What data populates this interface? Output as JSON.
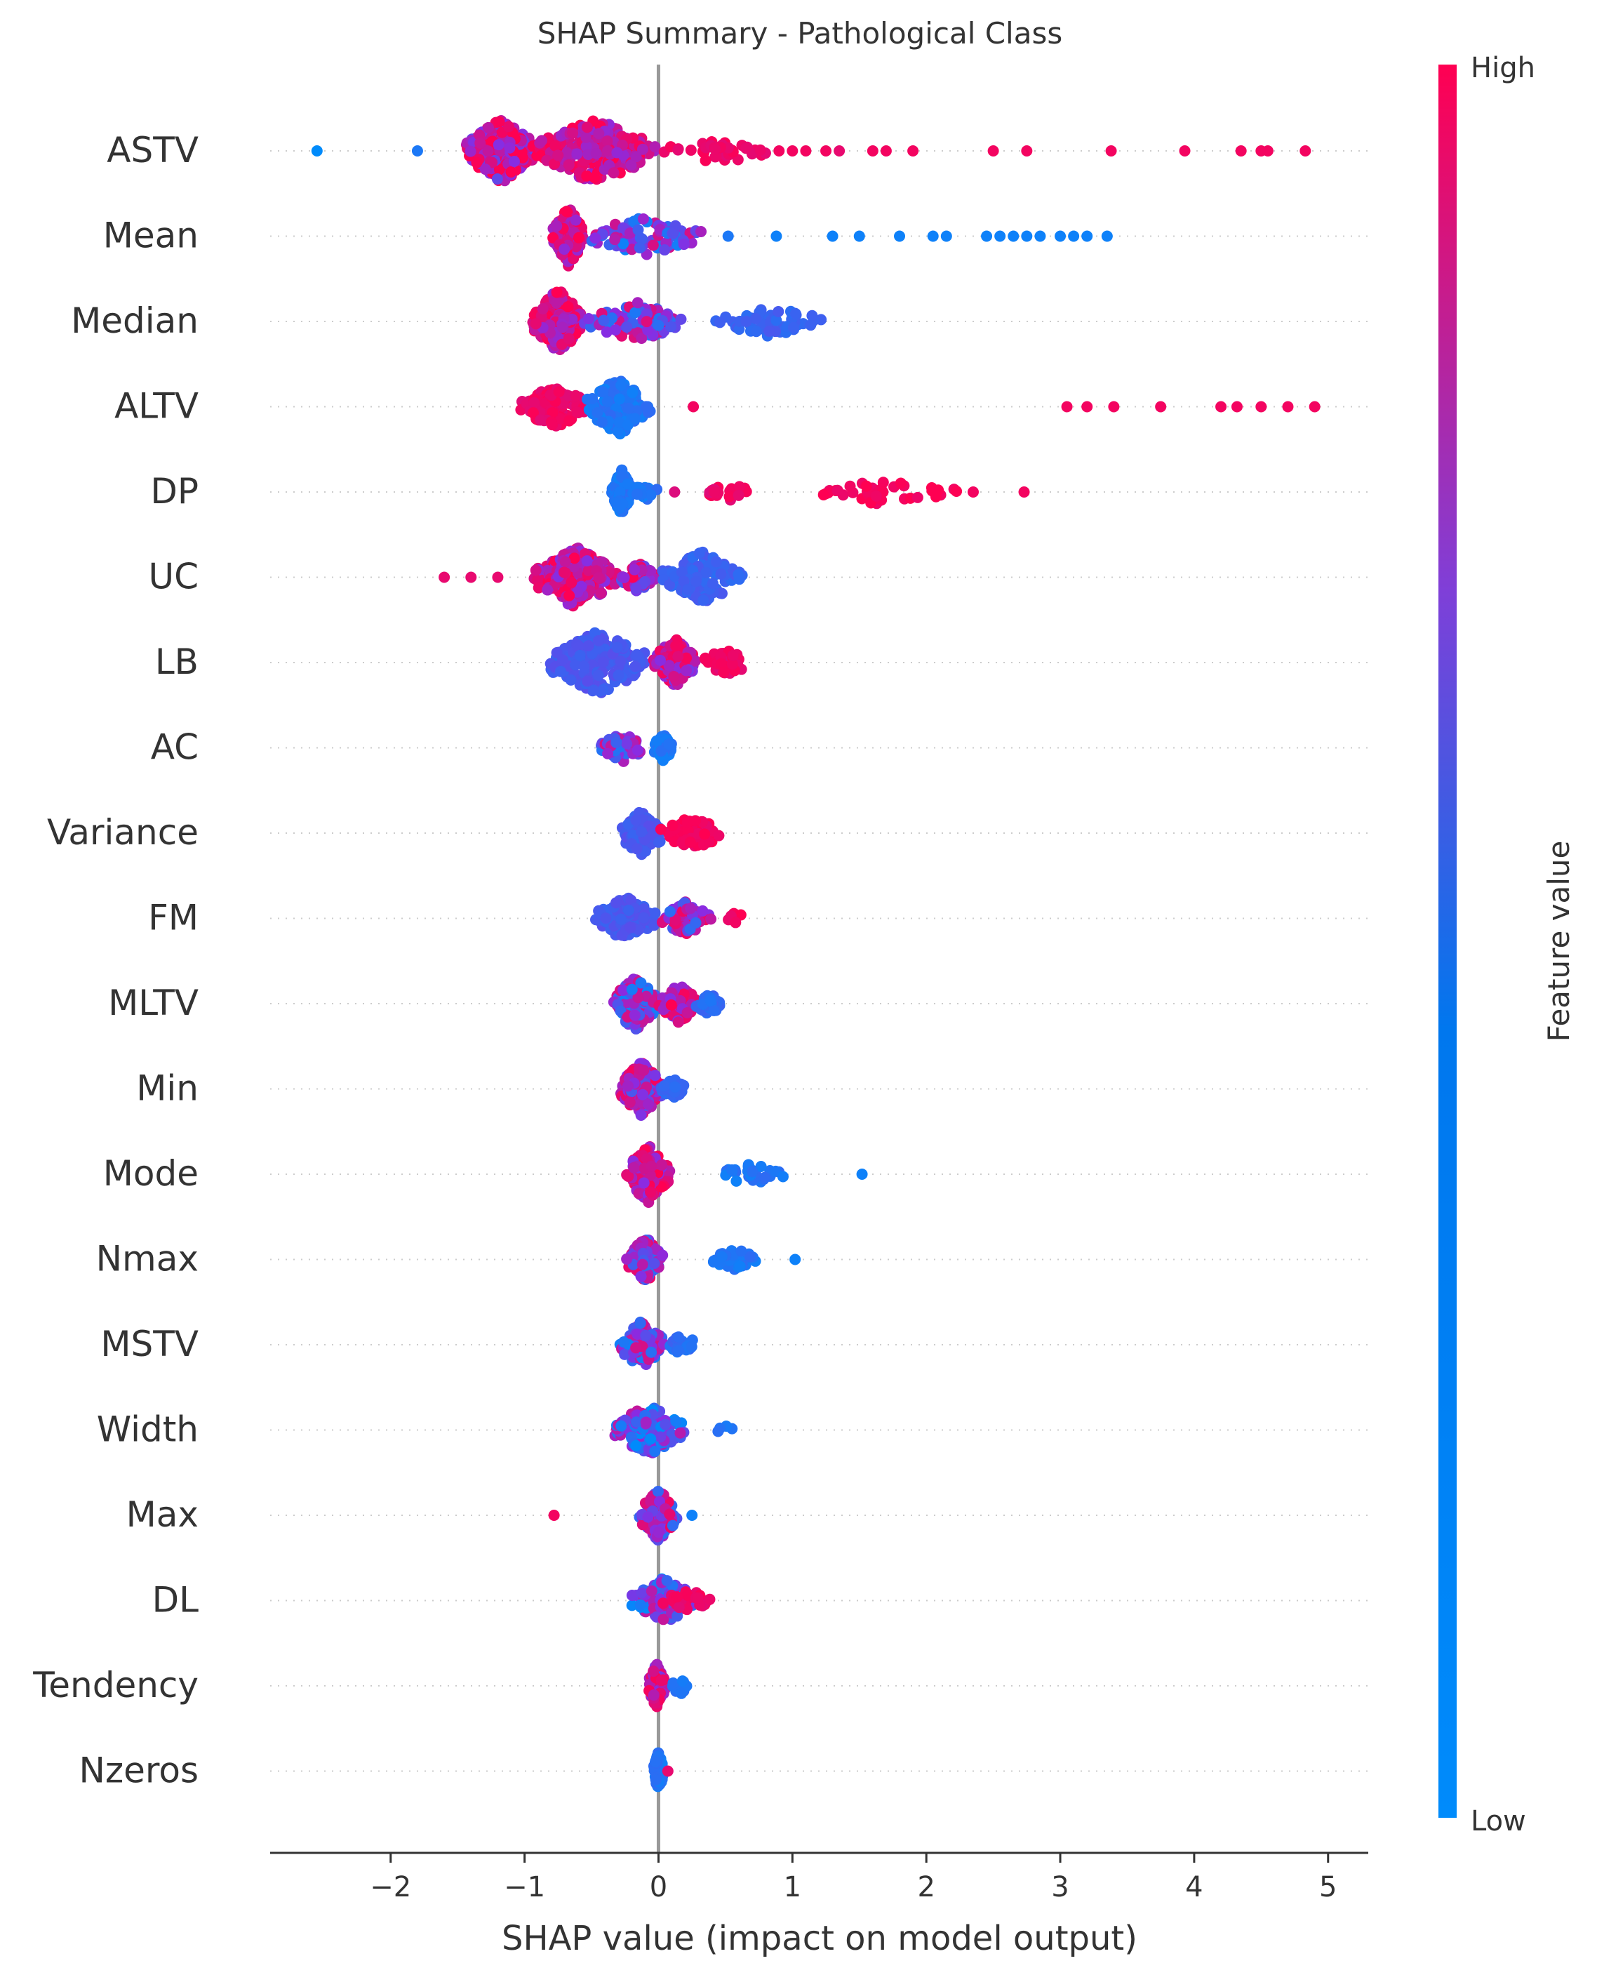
{
  "chart_data": {
    "type": "scatter",
    "subtype": "shap-beeswarm",
    "title": "SHAP Summary - Pathological Class",
    "xlabel": "SHAP value (impact on model output)",
    "xlim": [
      -2.9,
      5.3
    ],
    "xticks": [
      -2,
      -1,
      0,
      1,
      2,
      3,
      4,
      5
    ],
    "xtick_labels": [
      "−2",
      "−1",
      "0",
      "1",
      "2",
      "3",
      "4",
      "5"
    ],
    "zero_line": true,
    "colorbar": {
      "label": "Feature value",
      "high_label": "High",
      "low_label": "Low",
      "high_color": "#ff0052",
      "low_color": "#008bfb",
      "mid_color": "#8a2be2"
    },
    "features": [
      {
        "name": "ASTV",
        "clusters": [
          [
            -1.45,
            -0.9,
            320,
            0.75,
            "mix"
          ],
          [
            -0.95,
            0.0,
            220,
            0.8,
            "mixhigh"
          ],
          [
            0.0,
            0.9,
            40,
            0.9,
            "high"
          ]
        ],
        "points": [
          [
            -2.55,
            0.0
          ],
          [
            -1.8,
            0.1
          ],
          [
            0.9,
            0.95
          ],
          [
            1.0,
            0.95
          ],
          [
            1.1,
            0.95
          ],
          [
            1.25,
            0.95
          ],
          [
            1.35,
            0.9
          ],
          [
            1.6,
            0.95
          ],
          [
            1.7,
            0.95
          ],
          [
            1.9,
            0.95
          ],
          [
            2.5,
            0.95
          ],
          [
            2.75,
            0.95
          ],
          [
            3.38,
            0.95
          ],
          [
            3.93,
            0.95
          ],
          [
            4.35,
            0.95
          ],
          [
            4.5,
            0.95
          ],
          [
            4.55,
            0.95
          ],
          [
            4.83,
            0.95
          ]
        ]
      },
      {
        "name": "Mean",
        "clusters": [
          [
            -0.8,
            -0.55,
            160,
            0.8,
            "mixhigh"
          ],
          [
            -0.55,
            0.35,
            90,
            0.45,
            "mix"
          ]
        ],
        "points": [
          [
            0.52,
            0.1
          ],
          [
            0.88,
            0.05
          ],
          [
            1.3,
            0.05
          ],
          [
            1.5,
            0.05
          ],
          [
            1.8,
            0.05
          ],
          [
            2.05,
            0.05
          ],
          [
            2.15,
            0.05
          ],
          [
            2.45,
            0.05
          ],
          [
            2.55,
            0.05
          ],
          [
            2.65,
            0.05
          ],
          [
            2.75,
            0.05
          ],
          [
            2.85,
            0.05
          ],
          [
            3.0,
            0.05
          ],
          [
            3.1,
            0.05
          ],
          [
            3.2,
            0.05
          ],
          [
            3.35,
            0.05
          ]
        ]
      },
      {
        "name": "Median",
        "clusters": [
          [
            -0.95,
            -0.55,
            200,
            0.8,
            "mixhigh"
          ],
          [
            -0.6,
            0.25,
            90,
            0.5,
            "mix"
          ],
          [
            0.4,
            1.25,
            60,
            0.15,
            "low"
          ]
        ],
        "points": []
      },
      {
        "name": "ALTV",
        "clusters": [
          [
            -1.05,
            -0.5,
            100,
            0.9,
            "high"
          ],
          [
            -0.55,
            -0.05,
            150,
            0.05,
            "low"
          ]
        ],
        "points": [
          [
            0.26,
            0.95
          ],
          [
            3.05,
            0.95
          ],
          [
            3.2,
            0.95
          ],
          [
            3.4,
            0.95
          ],
          [
            3.75,
            0.95
          ],
          [
            4.2,
            0.95
          ],
          [
            4.32,
            0.95
          ],
          [
            4.5,
            0.95
          ],
          [
            4.7,
            0.95
          ],
          [
            4.9,
            0.95
          ]
        ]
      },
      {
        "name": "DP",
        "clusters": [
          [
            -0.35,
            -0.2,
            110,
            0.05,
            "low"
          ],
          [
            -0.2,
            0.0,
            20,
            0.05,
            "low"
          ],
          [
            0.35,
            0.7,
            20,
            0.9,
            "high"
          ],
          [
            1.0,
            2.3,
            40,
            0.95,
            "high"
          ]
        ],
        "points": [
          [
            0.12,
            0.85
          ],
          [
            2.35,
            0.95
          ],
          [
            2.73,
            0.95
          ]
        ]
      },
      {
        "name": "UC",
        "clusters": [
          [
            -0.95,
            -0.3,
            210,
            0.75,
            "mixhigh"
          ],
          [
            -0.3,
            0.0,
            60,
            0.6,
            "mix"
          ],
          [
            0.0,
            0.65,
            130,
            0.15,
            "low"
          ]
        ],
        "points": [
          [
            -1.6,
            0.9
          ],
          [
            -1.4,
            0.9
          ],
          [
            -1.2,
            0.9
          ]
        ]
      },
      {
        "name": "LB",
        "clusters": [
          [
            -0.85,
            -0.05,
            170,
            0.2,
            "low"
          ],
          [
            -0.05,
            0.3,
            120,
            0.7,
            "mixhigh"
          ],
          [
            0.3,
            0.7,
            50,
            0.9,
            "high"
          ]
        ],
        "points": []
      },
      {
        "name": "AC",
        "clusters": [
          [
            -0.45,
            -0.1,
            60,
            0.45,
            "mix"
          ],
          [
            -0.05,
            0.12,
            50,
            0.05,
            "low"
          ]
        ],
        "points": []
      },
      {
        "name": "Variance",
        "clusters": [
          [
            -0.3,
            0.05,
            110,
            0.2,
            "low"
          ],
          [
            0.0,
            0.5,
            70,
            0.92,
            "high"
          ]
        ],
        "points": []
      },
      {
        "name": "FM",
        "clusters": [
          [
            -0.5,
            0.0,
            110,
            0.2,
            "low"
          ],
          [
            0.0,
            0.4,
            70,
            0.55,
            "mix"
          ],
          [
            0.5,
            0.65,
            6,
            0.92,
            "high"
          ]
        ],
        "points": []
      },
      {
        "name": "MLTV",
        "clusters": [
          [
            -0.35,
            0.0,
            140,
            0.45,
            "mix"
          ],
          [
            0.0,
            0.3,
            90,
            0.75,
            "mixhigh"
          ],
          [
            0.25,
            0.5,
            35,
            0.1,
            "low"
          ]
        ],
        "points": []
      },
      {
        "name": "Min",
        "clusters": [
          [
            -0.3,
            0.05,
            140,
            0.6,
            "mix"
          ],
          [
            0.0,
            0.22,
            30,
            0.15,
            "low"
          ]
        ],
        "points": []
      },
      {
        "name": "Mode",
        "clusters": [
          [
            -0.25,
            0.1,
            150,
            0.75,
            "mixhigh"
          ],
          [
            0.4,
            0.98,
            30,
            0.05,
            "low"
          ]
        ],
        "points": [
          [
            1.52,
            0.05
          ]
        ]
      },
      {
        "name": "Nmax",
        "clusters": [
          [
            -0.25,
            0.05,
            110,
            0.55,
            "mix"
          ],
          [
            0.4,
            0.75,
            35,
            0.05,
            "low"
          ]
        ],
        "points": [
          [
            1.02,
            0.05
          ]
        ]
      },
      {
        "name": "MSTV",
        "clusters": [
          [
            -0.3,
            0.05,
            120,
            0.45,
            "mix"
          ],
          [
            0.05,
            0.32,
            30,
            0.1,
            "low"
          ]
        ],
        "points": []
      },
      {
        "name": "Width",
        "clusters": [
          [
            -0.35,
            0.2,
            130,
            0.35,
            "mix"
          ],
          [
            0.4,
            0.6,
            4,
            0.05,
            "low"
          ]
        ],
        "points": []
      },
      {
        "name": "Max",
        "clusters": [
          [
            -0.15,
            0.15,
            130,
            0.55,
            "mix"
          ]
        ],
        "points": [
          [
            -0.78,
            0.95
          ],
          [
            0.25,
            0.05
          ]
        ]
      },
      {
        "name": "DL",
        "clusters": [
          [
            -0.22,
            0.3,
            110,
            0.4,
            "mix"
          ],
          [
            0.0,
            0.45,
            30,
            0.9,
            "high"
          ]
        ],
        "points": []
      },
      {
        "name": "Tendency",
        "clusters": [
          [
            -0.08,
            0.05,
            110,
            0.7,
            "mixhigh"
          ],
          [
            0.05,
            0.28,
            15,
            0.05,
            "low"
          ]
        ],
        "points": []
      },
      {
        "name": "Nzeros",
        "clusters": [
          [
            -0.04,
            0.04,
            90,
            0.05,
            "low"
          ]
        ],
        "points": [
          [
            0.07,
            0.9
          ]
        ]
      }
    ]
  }
}
